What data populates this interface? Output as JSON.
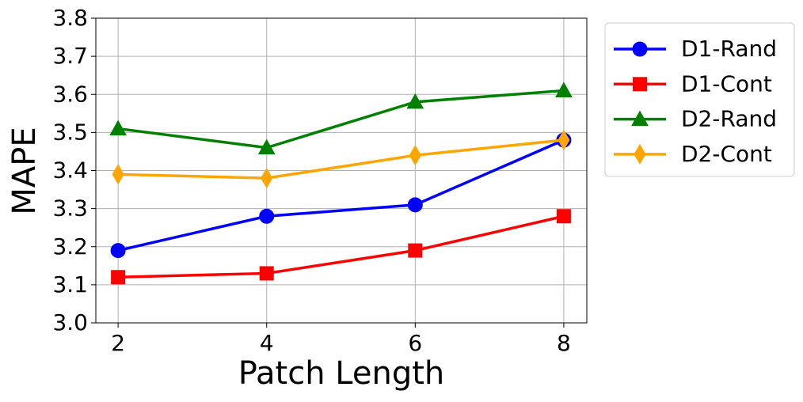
{
  "chart_data": {
    "type": "line",
    "xlabel": "Patch Length",
    "ylabel": "MAPE",
    "x": [
      2,
      4,
      6,
      8
    ],
    "series": [
      {
        "name": "D1-Rand",
        "color": "#0000ff",
        "marker": "circle",
        "values": [
          3.19,
          3.28,
          3.31,
          3.48
        ]
      },
      {
        "name": "D1-Cont",
        "color": "#ff0000",
        "marker": "square",
        "values": [
          3.12,
          3.13,
          3.19,
          3.28
        ]
      },
      {
        "name": "D2-Rand",
        "color": "#008000",
        "marker": "triangle",
        "values": [
          3.51,
          3.46,
          3.58,
          3.61
        ]
      },
      {
        "name": "D2-Cont",
        "color": "#ffa500",
        "marker": "diamond",
        "values": [
          3.39,
          3.38,
          3.44,
          3.48
        ]
      }
    ],
    "xlim": [
      1.7,
      8.31
    ],
    "xticks": [
      2,
      4,
      6,
      8
    ],
    "ylim": [
      3.0,
      3.8
    ],
    "yticks": [
      {
        "value": 3.0,
        "label": "3.0"
      },
      3.1,
      3.2,
      3.3,
      3.4,
      3.5,
      3.6,
      3.7,
      3.8
    ],
    "grid": true,
    "legend": "outside upper right"
  }
}
